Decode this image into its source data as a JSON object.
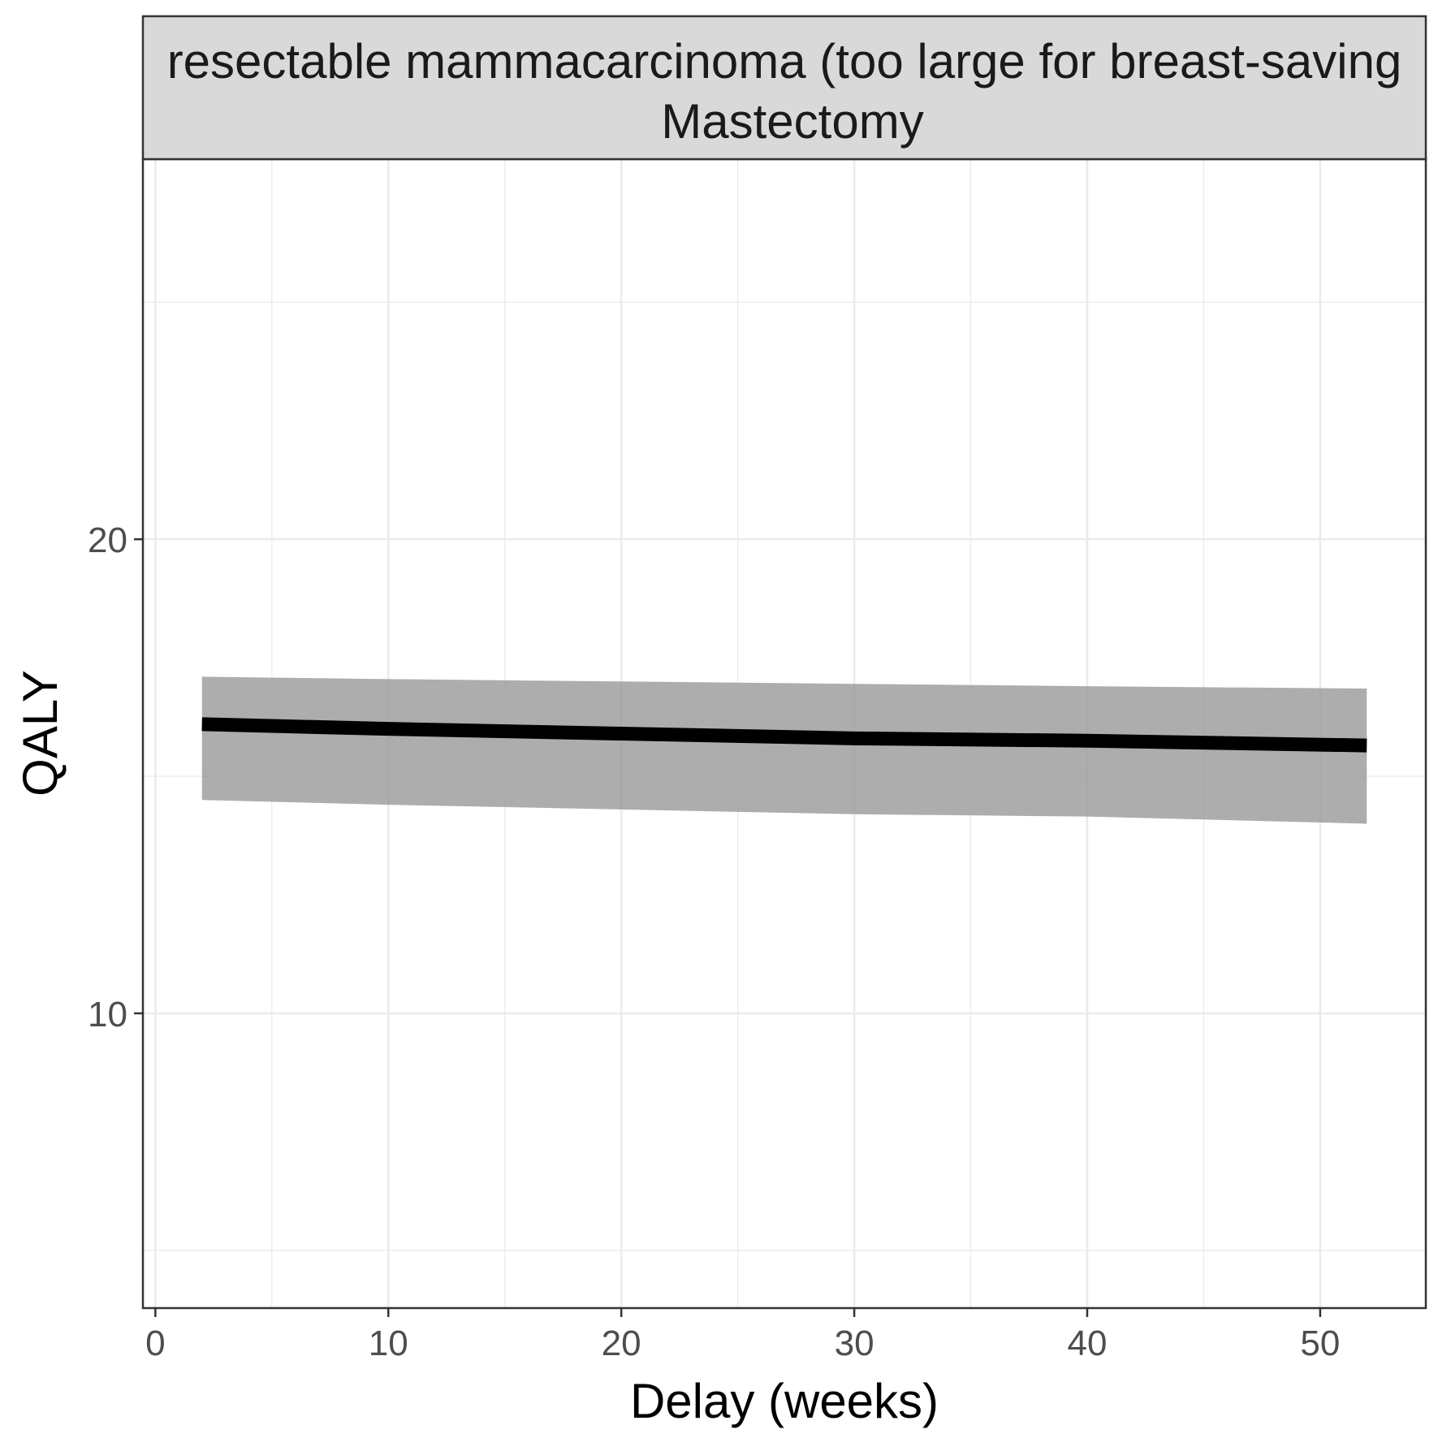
{
  "chart_data": {
    "type": "line",
    "facet_label": {
      "line1": "resectable mammacarcinoma (too large for breast-saving",
      "line2": "Mastectomy"
    },
    "xlabel": "Delay (weeks)",
    "ylabel": "QALY",
    "xlim": [
      -0.5,
      54.5
    ],
    "ylim": [
      3.8,
      28.0
    ],
    "x_ticks": [
      0,
      10,
      20,
      30,
      40,
      50
    ],
    "y_ticks": [
      10,
      20
    ],
    "x_minor_grid": [
      5,
      15,
      25,
      35,
      45
    ],
    "y_minor_grid": [
      5,
      15,
      25
    ],
    "grid": true,
    "legend": "none",
    "series": [
      {
        "x": [
          2,
          10,
          20,
          30,
          40,
          52
        ],
        "y": [
          16.1,
          16.0,
          15.9,
          15.8,
          15.75,
          15.65
        ],
        "lower": [
          14.5,
          14.4,
          14.3,
          14.2,
          14.15,
          14.0
        ],
        "upper": [
          17.1,
          17.05,
          17.0,
          16.95,
          16.9,
          16.85
        ]
      }
    ],
    "colors": {
      "line": "#000000",
      "ribbon": "#999999",
      "strip_background": "#d9d9d9",
      "grid_major": "#ebebeb",
      "panel_border": "#333333"
    }
  }
}
